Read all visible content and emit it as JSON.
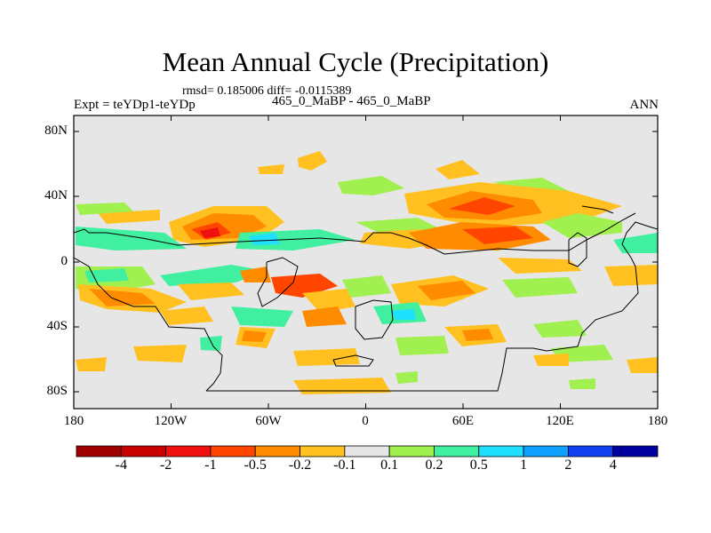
{
  "title": "Mean Annual Cycle (Precipitation)",
  "stats": "rmsd= 0.185006 diff= -0.0115389",
  "experiment": "Expt = teYDp1-teYDp",
  "case_label": "465_0_MaBP - 465_0_MaBP",
  "season": "ANN",
  "y_axis": {
    "ticks": [
      "80N",
      "40N",
      "0",
      "40S",
      "80S"
    ]
  },
  "x_axis": {
    "ticks": [
      "180",
      "120W",
      "60W",
      "0",
      "60E",
      "120E",
      "180"
    ]
  },
  "colorbar": {
    "labels": [
      "-4",
      "-2",
      "-1",
      "-0.5",
      "-0.2",
      "-0.1",
      "0.1",
      "0.2",
      "0.5",
      "1",
      "2",
      "4"
    ],
    "colors": [
      "#a00000",
      "#c80000",
      "#f01010",
      "#ff4500",
      "#ff8c00",
      "#ffc020",
      "#e6e6e6",
      "#a0f050",
      "#40f0a0",
      "#20e0ff",
      "#10a0ff",
      "#1040f0",
      "#0000a0"
    ]
  },
  "palette": {
    "ocean_background": "#e6e6e6",
    "frame": "#000000"
  }
}
